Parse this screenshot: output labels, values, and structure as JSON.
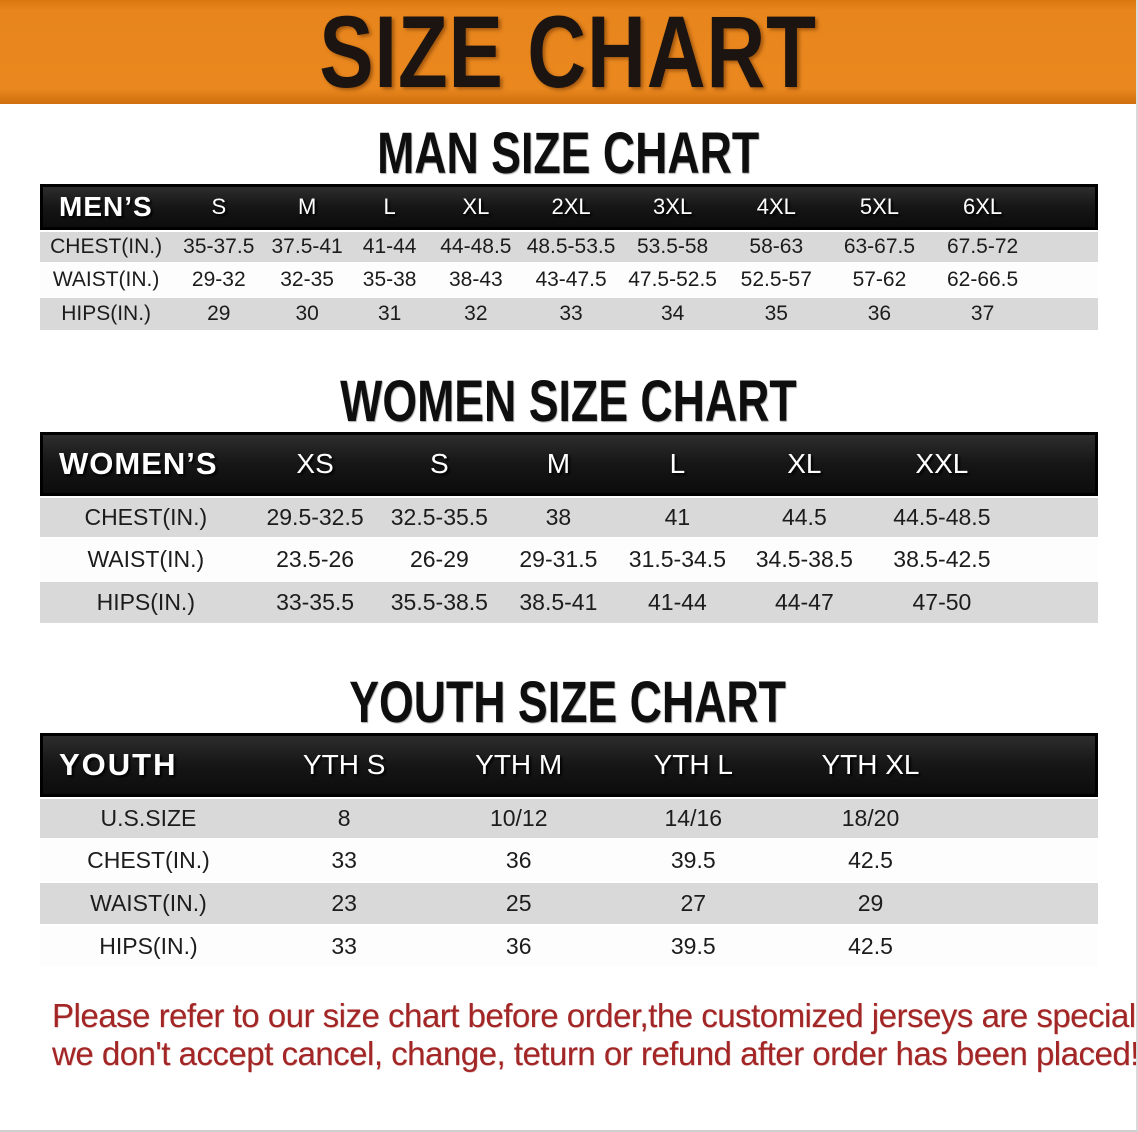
{
  "banner": {
    "title": "SIZE CHART"
  },
  "colors": {
    "banner_orange": "#E8861D",
    "header_black": "#161616",
    "row_gray": "#D9D9D9",
    "notice_red": "#A32626"
  },
  "men": {
    "title": "MAN SIZE CHART",
    "header": {
      "label": "MEN’S",
      "sizes": [
        "S",
        "M",
        "L",
        "XL",
        "2XL",
        "3XL",
        "4XL",
        "5XL",
        "6XL"
      ]
    },
    "rows": [
      {
        "label": "CHEST(IN.)",
        "values": [
          "35-37.5",
          "37.5-41",
          "41-44",
          "44-48.5",
          "48.5-53.5",
          "53.5-58",
          "58-63",
          "63-67.5",
          "67.5-72"
        ]
      },
      {
        "label": "WAIST(IN.)",
        "values": [
          "29-32",
          "32-35",
          "35-38",
          "38-43",
          "43-47.5",
          "47.5-52.5",
          "52.5-57",
          "57-62",
          "62-66.5"
        ]
      },
      {
        "label": "HIPS(IN.)",
        "values": [
          "29",
          "30",
          "31",
          "32",
          "33",
          "34",
          "35",
          "36",
          "37"
        ]
      }
    ]
  },
  "women": {
    "title": "WOMEN SIZE CHART",
    "header": {
      "label": "WOMEN’S",
      "sizes": [
        "XS",
        "S",
        "M",
        "L",
        "XL",
        "XXL"
      ]
    },
    "rows": [
      {
        "label": "CHEST(IN.)",
        "values": [
          "29.5-32.5",
          "32.5-35.5",
          "38",
          "41",
          "44.5",
          "44.5-48.5"
        ]
      },
      {
        "label": "WAIST(IN.)",
        "values": [
          "23.5-26",
          "26-29",
          "29-31.5",
          "31.5-34.5",
          "34.5-38.5",
          "38.5-42.5"
        ]
      },
      {
        "label": "HIPS(IN.)",
        "values": [
          "33-35.5",
          "35.5-38.5",
          "38.5-41",
          "41-44",
          "44-47",
          "47-50"
        ]
      }
    ]
  },
  "youth": {
    "title": "YOUTH SIZE CHART",
    "header": {
      "label": "YOUTH",
      "sizes": [
        "YTH S",
        "YTH M",
        "YTH L",
        "YTH XL"
      ]
    },
    "rows": [
      {
        "label": "U.S.SIZE",
        "values": [
          "8",
          "10/12",
          "14/16",
          "18/20"
        ]
      },
      {
        "label": "CHEST(IN.)",
        "values": [
          "33",
          "36",
          "39.5",
          "42.5"
        ]
      },
      {
        "label": "WAIST(IN.)",
        "values": [
          "23",
          "25",
          "27",
          "29"
        ]
      },
      {
        "label": "HIPS(IN.)",
        "values": [
          "33",
          "36",
          "39.5",
          "42.5"
        ]
      }
    ]
  },
  "notice": {
    "line1": "Please refer to our size chart before order,the customized jerseys are special products,",
    "line2": "we don't accept cancel, change, teturn or refund after order has been placed!"
  }
}
